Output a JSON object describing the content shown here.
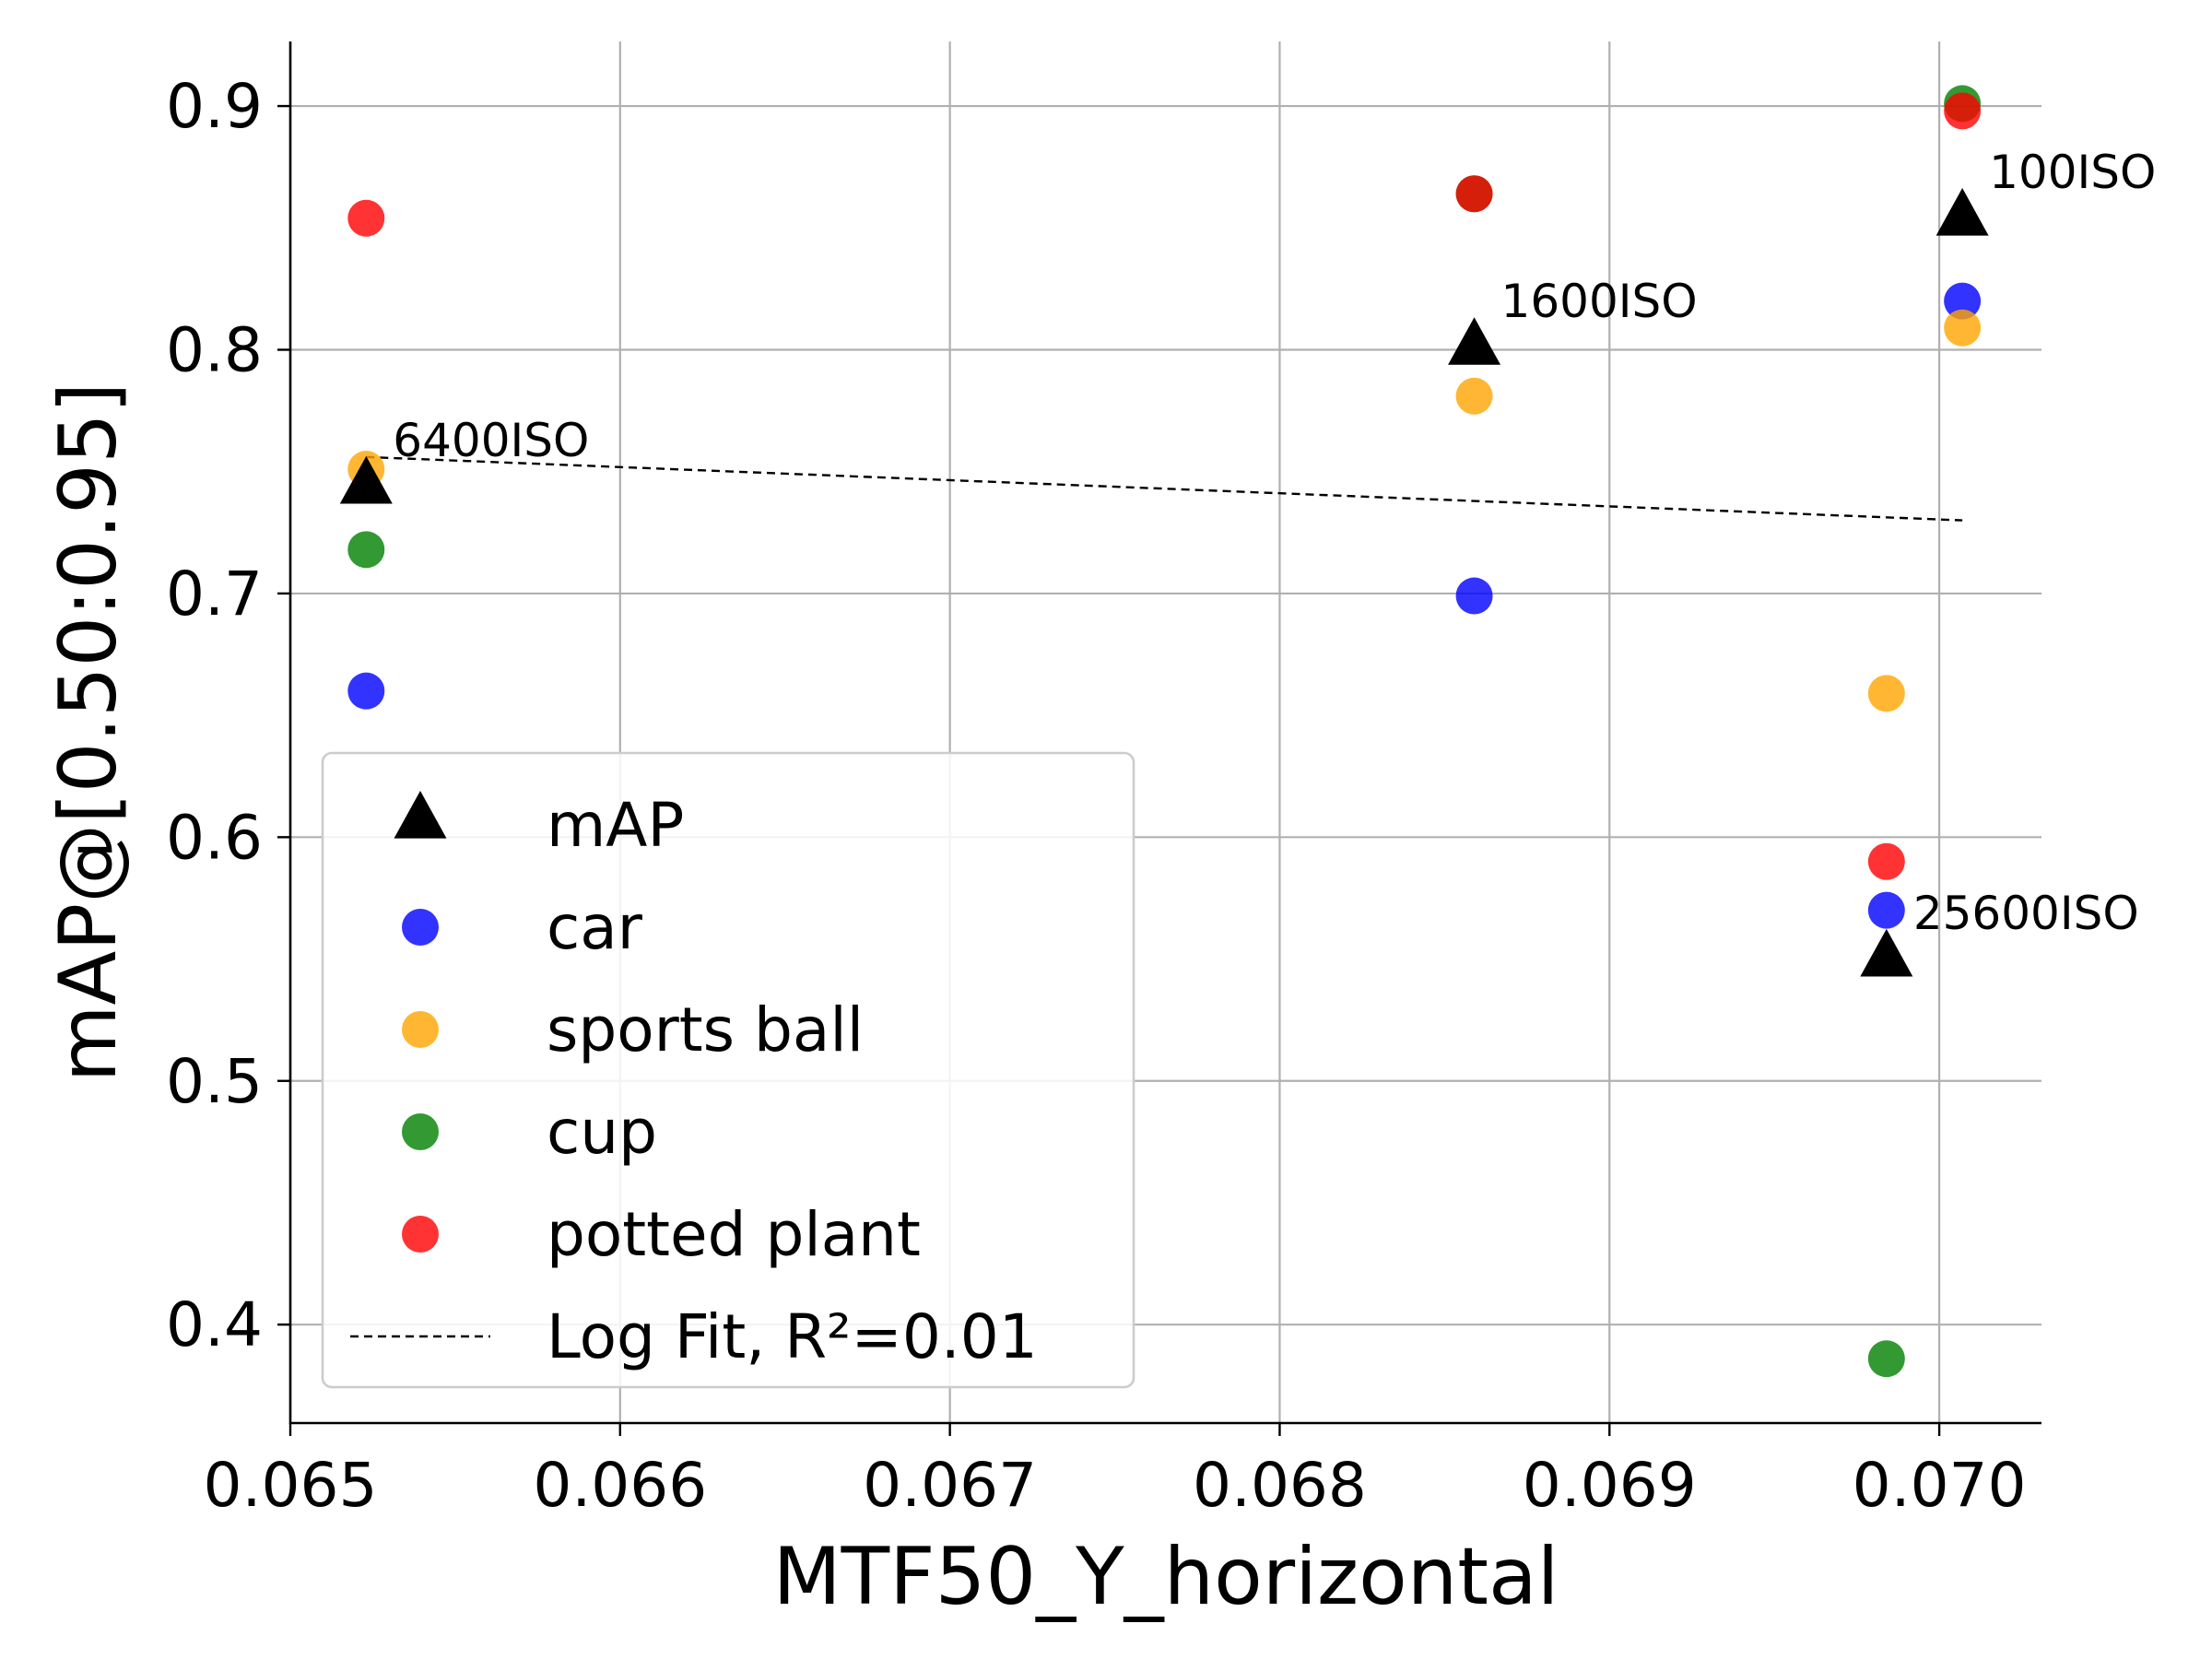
{
  "chart_data": {
    "type": "scatter",
    "title": "",
    "xlabel": "MTF50_Y_horizontal",
    "ylabel": "mAP@[0.50:0.95]",
    "xlim": [
      0.065,
      0.07031
    ],
    "ylim": [
      0.3596,
      0.9265
    ],
    "x_ticks": [
      "0.065",
      "0.066",
      "0.067",
      "0.068",
      "0.069",
      "0.070"
    ],
    "y_ticks": [
      "0.4",
      "0.5",
      "0.6",
      "0.7",
      "0.8",
      "0.9"
    ],
    "grid": true,
    "legend_position": "lower-left",
    "series": [
      {
        "name": "mAP",
        "marker": "triangle",
        "color": "#000000",
        "points": [
          {
            "x": 0.06523,
            "y": 0.745
          },
          {
            "x": 0.06859,
            "y": 0.802
          },
          {
            "x": 0.07007,
            "y": 0.855
          },
          {
            "x": 0.06984,
            "y": 0.551
          }
        ]
      },
      {
        "name": "car",
        "marker": "circle",
        "color": "#0000ff",
        "points": [
          {
            "x": 0.06523,
            "y": 0.66
          },
          {
            "x": 0.06859,
            "y": 0.699
          },
          {
            "x": 0.07007,
            "y": 0.82
          },
          {
            "x": 0.06984,
            "y": 0.57
          }
        ]
      },
      {
        "name": "sports ball",
        "marker": "circle",
        "color": "#ffa500",
        "points": [
          {
            "x": 0.06523,
            "y": 0.751
          },
          {
            "x": 0.06859,
            "y": 0.781
          },
          {
            "x": 0.07007,
            "y": 0.809
          },
          {
            "x": 0.06984,
            "y": 0.659
          }
        ]
      },
      {
        "name": "cup",
        "marker": "circle",
        "color": "#008000",
        "points": [
          {
            "x": 0.06523,
            "y": 0.718
          },
          {
            "x": 0.06859,
            "y": 0.864
          },
          {
            "x": 0.07007,
            "y": 0.901
          },
          {
            "x": 0.06984,
            "y": 0.386
          }
        ]
      },
      {
        "name": "potted plant",
        "marker": "circle",
        "color": "#ff0000",
        "points": [
          {
            "x": 0.06523,
            "y": 0.854
          },
          {
            "x": 0.06859,
            "y": 0.864
          },
          {
            "x": 0.07007,
            "y": 0.898
          },
          {
            "x": 0.06984,
            "y": 0.59
          }
        ]
      }
    ],
    "fit_line": {
      "name": "Log Fit, R²=0.01",
      "style": "dashed",
      "color": "#000000",
      "points": [
        {
          "x": 0.06523,
          "y": 0.756
        },
        {
          "x": 0.07007,
          "y": 0.73
        }
      ]
    },
    "annotations": [
      {
        "text": "6400ISO",
        "x": 0.06523,
        "y": 0.745
      },
      {
        "text": "1600ISO",
        "x": 0.06859,
        "y": 0.802
      },
      {
        "text": "100ISO",
        "x": 0.07007,
        "y": 0.855
      },
      {
        "text": "25600ISO",
        "x": 0.06984,
        "y": 0.551
      }
    ]
  }
}
